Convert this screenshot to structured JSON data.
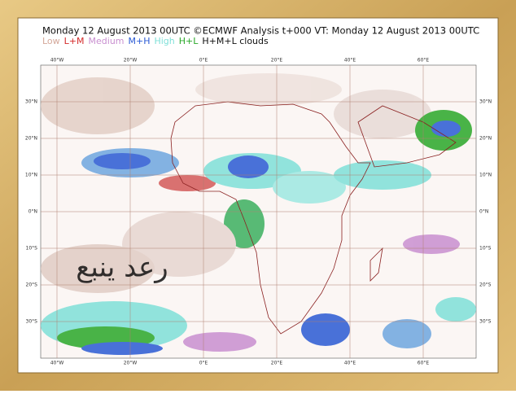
{
  "title": "Monday 12 August 2013 00UTC ©ECMWF Analysis t+000 VT: Monday 12 August 2013 00UTC",
  "legend": [
    {
      "label": "Low",
      "color": "#d4a89a"
    },
    {
      "label": "L+M",
      "color": "#d42a2a"
    },
    {
      "label": "Medium",
      "color": "#c98fd0"
    },
    {
      "label": "M+H",
      "color": "#2a5ad4"
    },
    {
      "label": "High",
      "color": "#7fe0d8"
    },
    {
      "label": "H+L",
      "color": "#2aa82a"
    },
    {
      "label": "H+M+L clouds",
      "color": "#111111"
    }
  ],
  "map": {
    "lon_labels": [
      "40°W",
      "20°W",
      "0°E",
      "20°E",
      "40°E",
      "60°E"
    ],
    "lat_labels": [
      "30°N",
      "20°N",
      "10°N",
      "0°N",
      "10°S",
      "20°S",
      "30°S"
    ]
  },
  "watermark": "رعد ينبع"
}
